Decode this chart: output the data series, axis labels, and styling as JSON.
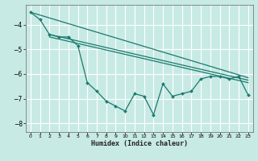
{
  "xlabel": "Humidex (Indice chaleur)",
  "bg_color": "#c8eae5",
  "grid_color": "#ffffff",
  "line_color": "#1a7a6e",
  "xlim": [
    -0.5,
    23.5
  ],
  "ylim": [
    -8.35,
    -3.2
  ],
  "xticks": [
    0,
    1,
    2,
    3,
    4,
    5,
    6,
    7,
    8,
    9,
    10,
    11,
    12,
    13,
    14,
    15,
    16,
    17,
    18,
    19,
    20,
    21,
    22,
    23
  ],
  "yticks": [
    -8,
    -7,
    -6,
    -5,
    -4
  ],
  "scatter_x": [
    0,
    1,
    2,
    3,
    4,
    5,
    6,
    7,
    8,
    9,
    10,
    11,
    12,
    13,
    14,
    15,
    16,
    17,
    18,
    19,
    20,
    21,
    22,
    23
  ],
  "scatter_y": [
    -3.5,
    -3.8,
    -4.4,
    -4.5,
    -4.5,
    -4.85,
    -6.35,
    -6.7,
    -7.1,
    -7.3,
    -7.5,
    -6.8,
    -6.9,
    -7.65,
    -6.4,
    -6.9,
    -6.8,
    -6.7,
    -6.2,
    -6.1,
    -6.1,
    -6.2,
    -6.1,
    -6.85
  ],
  "line1_x": [
    0,
    23
  ],
  "line1_y": [
    -3.5,
    -6.15
  ],
  "line2_x": [
    2,
    23
  ],
  "line2_y": [
    -4.4,
    -6.25
  ],
  "line3_x": [
    2,
    23
  ],
  "line3_y": [
    -4.5,
    -6.35
  ]
}
